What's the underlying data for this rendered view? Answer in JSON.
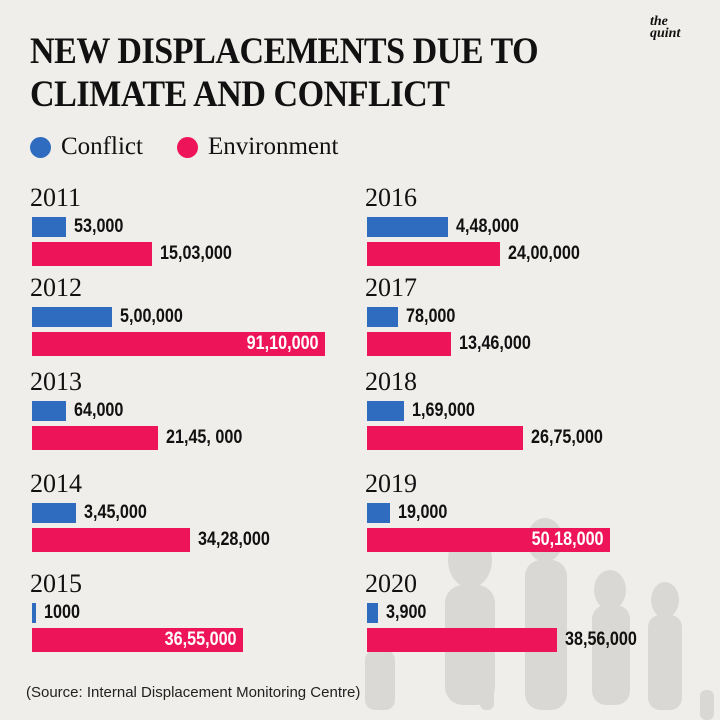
{
  "header": {
    "title_line1": "NEW DISPLACEMENTS DUE TO",
    "title_line2": "CLIMATE AND CONFLICT",
    "logo_line1": "the",
    "logo_line2": "quint"
  },
  "source": "(Source: Internal Displacement Monitoring Centre)",
  "colors": {
    "conflict": "#2f6cbf",
    "environment": "#ee145a",
    "background": "#efeeeb"
  },
  "chart_data": {
    "type": "bar",
    "orientation": "horizontal",
    "title": "NEW DISPLACEMENTS DUE TO CLIMATE AND CONFLICT",
    "legend": {
      "placement": "top-left",
      "entries": [
        "Conflict",
        "Environment"
      ]
    },
    "categories": [
      "2011",
      "2012",
      "2013",
      "2014",
      "2015",
      "2016",
      "2017",
      "2018",
      "2019",
      "2020"
    ],
    "series": [
      {
        "name": "Conflict",
        "color": "#2f6cbf",
        "values": [
          53000,
          500000,
          64000,
          345000,
          1000,
          448000,
          78000,
          169000,
          19000,
          3900
        ],
        "labels": [
          "53,000",
          "5,00,000",
          "64,000",
          "3,45,000",
          "1000",
          "4,48,000",
          "78,000",
          "1,69,000",
          "19,000",
          "3,900"
        ]
      },
      {
        "name": "Environment",
        "color": "#ee145a",
        "values": [
          1503000,
          9110000,
          2145000,
          3428000,
          3655000,
          2400000,
          1346000,
          2675000,
          5018000,
          3856000
        ],
        "labels": [
          "15,03,000",
          "91,10,000",
          "21,45, 000",
          "34,28,000",
          "36,55,000",
          "24,00,000",
          "13,46,000",
          "26,75,000",
          "50,18,000",
          "38,56,000"
        ]
      }
    ],
    "grid": false
  }
}
